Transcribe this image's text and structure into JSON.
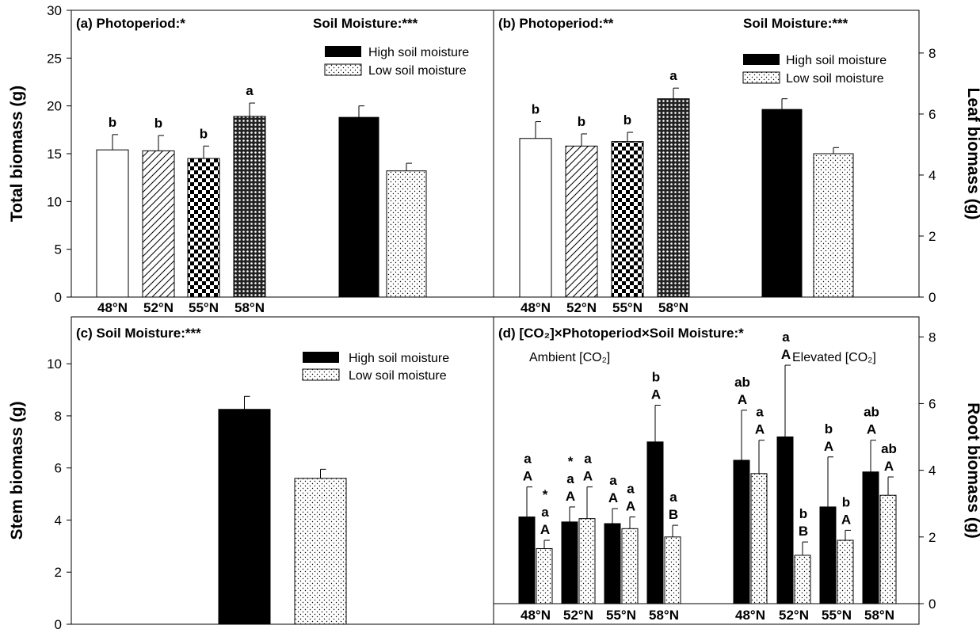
{
  "chart_data": [
    {
      "panel": "a",
      "type": "bar",
      "title_left": "(a) Photoperiod:*",
      "title_right": "Soil Moisture:***",
      "ylabel": "Total biomass (g)",
      "ylim": [
        0,
        30
      ],
      "yticks": [
        "0",
        "5",
        "10",
        "15",
        "20",
        "25",
        "30"
      ],
      "categories": [
        "48°N",
        "52°N",
        "55°N",
        "58°N"
      ],
      "photoperiod": {
        "values": [
          15.4,
          15.3,
          14.5,
          18.9
        ],
        "errors": [
          1.6,
          1.6,
          1.3,
          1.4
        ],
        "letters": [
          "b",
          "b",
          "b",
          "a"
        ],
        "patterns": [
          "open",
          "hatch",
          "checker",
          "dots"
        ]
      },
      "moisture": {
        "values": [
          18.8,
          13.2
        ],
        "errors": [
          1.2,
          0.8
        ]
      },
      "legend": [
        "High soil moisture",
        "Low soil moisture"
      ]
    },
    {
      "panel": "b",
      "type": "bar",
      "title_left": "(b) Photoperiod:**",
      "title_right": "Soil Moisture:***",
      "ylabel": "Leaf biomass (g)",
      "ylim": [
        0,
        9.4
      ],
      "yticks": [
        "0",
        "2",
        "4",
        "6",
        "8"
      ],
      "categories": [
        "48°N",
        "52°N",
        "55°N",
        "58°N"
      ],
      "photoperiod": {
        "values": [
          5.2,
          4.95,
          5.1,
          6.5
        ],
        "errors": [
          0.55,
          0.4,
          0.3,
          0.35
        ],
        "letters": [
          "b",
          "b",
          "b",
          "a"
        ],
        "patterns": [
          "open",
          "hatch",
          "checker",
          "dots"
        ]
      },
      "moisture": {
        "values": [
          6.15,
          4.7
        ],
        "errors": [
          0.35,
          0.2
        ]
      },
      "legend": [
        "High soil moisture",
        "Low soil moisture"
      ]
    },
    {
      "panel": "c",
      "type": "bar",
      "title_left": "(c) Soil Moisture:***",
      "ylabel": "Stem biomass (g)",
      "ylim": [
        0,
        11.8
      ],
      "yticks": [
        "0",
        "2",
        "4",
        "6",
        "8",
        "10"
      ],
      "moisture": {
        "values": [
          8.25,
          5.6
        ],
        "errors": [
          0.5,
          0.35
        ]
      },
      "legend": [
        "High soil moisture",
        "Low soil moisture"
      ]
    },
    {
      "panel": "d",
      "type": "bar",
      "title_left": "(d) [CO₂]×Photoperiod×Soil Moisture:*",
      "ylabel": "Root biomass (g)",
      "ylim": [
        0,
        8.6
      ],
      "yticks": [
        "0",
        "2",
        "4",
        "6",
        "8"
      ],
      "group_labels": [
        "Ambient [CO₂]",
        "Elevated [CO₂]"
      ],
      "categories": [
        "48°N",
        "52°N",
        "55°N",
        "58°N",
        "48°N",
        "52°N",
        "55°N",
        "58°N"
      ],
      "series": [
        {
          "name": "High soil moisture",
          "values": [
            2.6,
            2.45,
            2.4,
            4.85,
            4.3,
            5.0,
            2.9,
            3.95
          ],
          "errors": [
            0.9,
            0.45,
            0.45,
            1.1,
            1.5,
            2.15,
            1.5,
            0.95
          ],
          "labels": [
            [
              "a",
              "A"
            ],
            [
              "*",
              "a",
              "A"
            ],
            [
              "a",
              "A"
            ],
            [
              "b",
              "A"
            ],
            [
              "ab",
              "A"
            ],
            [
              "a",
              "A"
            ],
            [
              "b",
              "A"
            ],
            [
              "ab",
              "A"
            ]
          ]
        },
        {
          "name": "Low soil moisture",
          "values": [
            1.65,
            2.55,
            2.25,
            2.0,
            3.9,
            1.45,
            1.9,
            3.25
          ],
          "errors": [
            0.25,
            0.95,
            0.35,
            0.35,
            1.0,
            0.4,
            0.3,
            0.55
          ],
          "labels": [
            [
              "*",
              "a",
              "A"
            ],
            [
              "a",
              "A"
            ],
            [
              "a",
              "A"
            ],
            [
              "a",
              "B"
            ],
            [
              "a",
              "A"
            ],
            [
              "b",
              "B"
            ],
            [
              "b",
              "A"
            ],
            [
              "ab",
              "A"
            ]
          ]
        }
      ]
    }
  ],
  "colors": {
    "high": "#000000",
    "low_pattern": "dots",
    "axis": "#000000"
  }
}
